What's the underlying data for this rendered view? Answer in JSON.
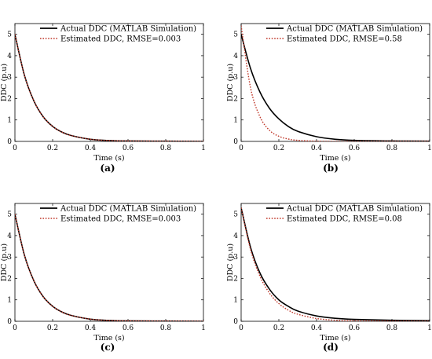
{
  "figure": {
    "panels": [
      {
        "caption": "(a)"
      },
      {
        "caption": "(b)"
      },
      {
        "caption": "(c)"
      },
      {
        "caption": "(d)"
      }
    ]
  },
  "chart_data": [
    {
      "type": "line",
      "panel": "(a)",
      "xlabel": "Time (s)",
      "ylabel": "DDC (p.u)",
      "xlim": [
        0,
        1
      ],
      "ylim": [
        0,
        5.5
      ],
      "xticks": [
        "0",
        "0.2",
        "0.4",
        "0.6",
        "0.8",
        "1"
      ],
      "yticks": [
        "0",
        "1",
        "2",
        "3",
        "4",
        "5"
      ],
      "grid": false,
      "legend_position": "top-right",
      "series": [
        {
          "name": "Actual DDC (MATLAB Simulation)",
          "style": "solid",
          "color": "#000000",
          "x": [
            0,
            0.05,
            0.1,
            0.15,
            0.2,
            0.25,
            0.3,
            0.4,
            0.5,
            0.6,
            0.8,
            1.0
          ],
          "y": [
            5.0,
            3.1,
            1.9,
            1.15,
            0.7,
            0.43,
            0.27,
            0.1,
            0.04,
            0.02,
            0.01,
            0.0
          ]
        },
        {
          "name": "Estimated DDC, RMSE=0.003",
          "style": "dotted",
          "color": "#c0392b",
          "x": [
            0,
            0.05,
            0.1,
            0.15,
            0.2,
            0.25,
            0.3,
            0.4,
            0.5,
            0.6,
            0.8,
            1.0
          ],
          "y": [
            5.0,
            3.1,
            1.9,
            1.15,
            0.7,
            0.43,
            0.27,
            0.1,
            0.04,
            0.02,
            0.01,
            0.0
          ]
        }
      ]
    },
    {
      "type": "line",
      "panel": "(b)",
      "xlabel": "Time (s)",
      "ylabel": "DDC (p.u)",
      "xlim": [
        0,
        1
      ],
      "ylim": [
        0,
        5.5
      ],
      "xticks": [
        "0",
        "0.2",
        "0.4",
        "0.6",
        "0.8",
        "1"
      ],
      "yticks": [
        "0",
        "1",
        "2",
        "3",
        "4",
        "5"
      ],
      "grid": false,
      "legend_position": "top-right",
      "series": [
        {
          "name": "Actual DDC (MATLAB Simulation)",
          "style": "solid",
          "color": "#000000",
          "x": [
            0,
            0.05,
            0.1,
            0.15,
            0.2,
            0.25,
            0.3,
            0.4,
            0.5,
            0.6,
            0.8,
            1.0
          ],
          "y": [
            5.0,
            3.4,
            2.3,
            1.55,
            1.05,
            0.7,
            0.47,
            0.22,
            0.1,
            0.05,
            0.02,
            0.01
          ]
        },
        {
          "name": "Estimated DDC, RMSE=0.58",
          "style": "dotted",
          "color": "#c0392b",
          "x": [
            0,
            0.05,
            0.1,
            0.15,
            0.2,
            0.25,
            0.3,
            0.4,
            0.5,
            0.6,
            0.8,
            1.0
          ],
          "y": [
            5.4,
            2.5,
            1.15,
            0.52,
            0.24,
            0.11,
            0.05,
            0.01,
            0.0,
            0.0,
            0.0,
            0.0
          ]
        }
      ]
    },
    {
      "type": "line",
      "panel": "(c)",
      "xlabel": "Time (s)",
      "ylabel": "DDC (p.u)",
      "xlim": [
        0,
        1
      ],
      "ylim": [
        0,
        5.5
      ],
      "xticks": [
        "0",
        "0.2",
        "0.4",
        "0.6",
        "0.8",
        "1"
      ],
      "yticks": [
        "0",
        "1",
        "2",
        "3",
        "4",
        "5"
      ],
      "grid": false,
      "legend_position": "top-right",
      "series": [
        {
          "name": "Actual DDC (MATLAB Simulation)",
          "style": "solid",
          "color": "#000000",
          "x": [
            0,
            0.05,
            0.1,
            0.15,
            0.2,
            0.25,
            0.3,
            0.4,
            0.5,
            0.6,
            0.8,
            1.0
          ],
          "y": [
            5.0,
            3.1,
            1.9,
            1.15,
            0.7,
            0.43,
            0.27,
            0.1,
            0.04,
            0.02,
            0.01,
            0.0
          ]
        },
        {
          "name": "Estimated DDC, RMSE=0.003",
          "style": "dotted",
          "color": "#c0392b",
          "x": [
            0,
            0.05,
            0.1,
            0.15,
            0.2,
            0.25,
            0.3,
            0.4,
            0.5,
            0.6,
            0.8,
            1.0
          ],
          "y": [
            5.0,
            3.1,
            1.9,
            1.15,
            0.7,
            0.43,
            0.27,
            0.1,
            0.04,
            0.02,
            0.01,
            0.0
          ]
        }
      ]
    },
    {
      "type": "line",
      "panel": "(d)",
      "xlabel": "Time (s)",
      "ylabel": "DDC (p.u)",
      "xlim": [
        0,
        1
      ],
      "ylim": [
        0,
        5.5
      ],
      "xticks": [
        "0",
        "0.2",
        "0.4",
        "0.6",
        "0.8",
        "1"
      ],
      "yticks": [
        "0",
        "1",
        "2",
        "3",
        "4",
        "5"
      ],
      "grid": false,
      "legend_position": "top-right",
      "series": [
        {
          "name": "Actual DDC (MATLAB Simulation)",
          "style": "solid",
          "color": "#000000",
          "x": [
            0,
            0.05,
            0.1,
            0.15,
            0.2,
            0.25,
            0.3,
            0.4,
            0.5,
            0.6,
            0.8,
            1.0
          ],
          "y": [
            5.3,
            3.45,
            2.25,
            1.5,
            1.0,
            0.7,
            0.48,
            0.25,
            0.14,
            0.09,
            0.05,
            0.03
          ]
        },
        {
          "name": "Estimated DDC, RMSE=0.08",
          "style": "dotted",
          "color": "#c0392b",
          "x": [
            0,
            0.05,
            0.1,
            0.15,
            0.2,
            0.25,
            0.3,
            0.4,
            0.5,
            0.6,
            0.8,
            1.0
          ],
          "y": [
            5.3,
            3.35,
            2.1,
            1.32,
            0.83,
            0.52,
            0.33,
            0.13,
            0.05,
            0.02,
            0.01,
            0.0
          ]
        }
      ]
    }
  ]
}
